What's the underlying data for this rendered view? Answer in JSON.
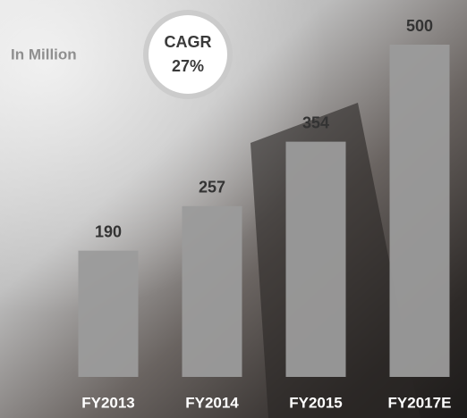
{
  "chart_data": {
    "type": "bar",
    "subtitle": "In Million",
    "annotation": {
      "title": "CAGR",
      "value": "27%"
    },
    "categories": [
      "FY2013",
      "FY2014",
      "FY2015",
      "FY2017E"
    ],
    "values": [
      190,
      257,
      354,
      500
    ],
    "color": "#9b9b9b"
  }
}
